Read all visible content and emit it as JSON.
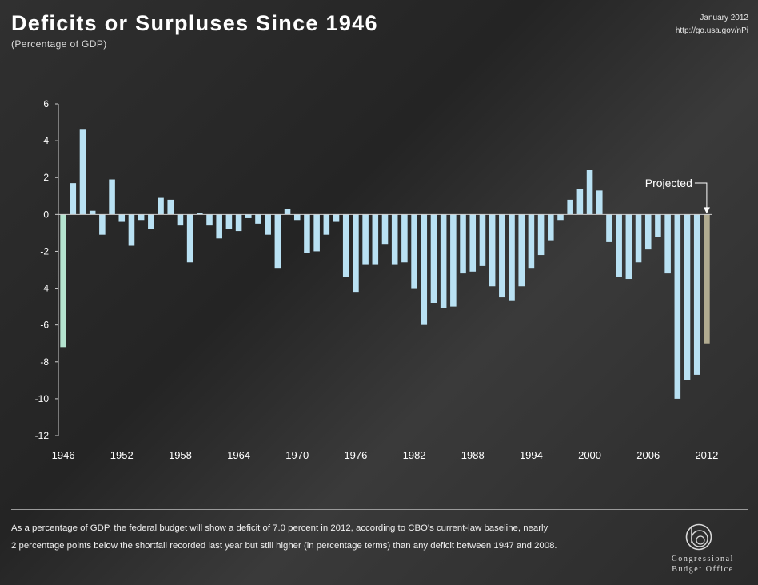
{
  "header": {
    "title": "Deficits or Surpluses Since 1946",
    "subtitle": "(Percentage of GDP)",
    "date": "January 2012",
    "url": "http://go.usa.gov/nPi"
  },
  "footnote": {
    "line1": "As a percentage of GDP, the federal budget will show a deficit of 7.0 percent in 2012, according to CBO's current-law baseline, nearly",
    "line2": "2 percentage points below the shortfall recorded last year but still higher (in percentage terms) than any deficit between 1947 and 2008."
  },
  "logo": {
    "line1": "Congressional",
    "line2": "Budget Office"
  },
  "colors": {
    "actual_bar": "#b9e1f3",
    "projected_bar": "#b1ab90",
    "first_bar": "#b4e3cf",
    "axis": "#cfcfcf",
    "text": "#ffffff"
  },
  "chart_data": {
    "type": "bar",
    "title": "Deficits or Surpluses Since 1946",
    "subtitle": "(Percentage of GDP)",
    "xlabel": "",
    "ylabel": "",
    "ylim": [
      -12,
      6
    ],
    "yticks": [
      6,
      4,
      2,
      0,
      -2,
      -4,
      -6,
      -8,
      -10,
      -12
    ],
    "xticks": [
      1946,
      1952,
      1958,
      1964,
      1970,
      1976,
      1982,
      1988,
      1994,
      2000,
      2006,
      2012
    ],
    "grid": false,
    "annotation": {
      "text": "Projected",
      "year": 2012
    },
    "categories": [
      1946,
      1947,
      1948,
      1949,
      1950,
      1951,
      1952,
      1953,
      1954,
      1955,
      1956,
      1957,
      1958,
      1959,
      1960,
      1961,
      1962,
      1963,
      1964,
      1965,
      1966,
      1967,
      1968,
      1969,
      1970,
      1971,
      1972,
      1973,
      1974,
      1975,
      1976,
      1977,
      1978,
      1979,
      1980,
      1981,
      1982,
      1983,
      1984,
      1985,
      1986,
      1987,
      1988,
      1989,
      1990,
      1991,
      1992,
      1993,
      1994,
      1995,
      1996,
      1997,
      1998,
      1999,
      2000,
      2001,
      2002,
      2003,
      2004,
      2005,
      2006,
      2007,
      2008,
      2009,
      2010,
      2011,
      2012
    ],
    "values": [
      -7.2,
      1.7,
      4.6,
      0.2,
      -1.1,
      1.9,
      -0.4,
      -1.7,
      -0.3,
      -0.8,
      0.9,
      0.8,
      -0.6,
      -2.6,
      0.1,
      -0.6,
      -1.3,
      -0.8,
      -0.9,
      -0.2,
      -0.5,
      -1.1,
      -2.9,
      0.3,
      -0.3,
      -2.1,
      -2.0,
      -1.1,
      -0.4,
      -3.4,
      -4.2,
      -2.7,
      -2.7,
      -1.6,
      -2.7,
      -2.6,
      -4.0,
      -6.0,
      -4.8,
      -5.1,
      -5.0,
      -3.2,
      -3.1,
      -2.8,
      -3.9,
      -4.5,
      -4.7,
      -3.9,
      -2.9,
      -2.2,
      -1.4,
      -0.3,
      0.8,
      1.4,
      2.4,
      1.3,
      -1.5,
      -3.4,
      -3.5,
      -2.6,
      -1.9,
      -1.2,
      -3.2,
      -10.0,
      -9.0,
      -8.7,
      -7.0
    ]
  }
}
